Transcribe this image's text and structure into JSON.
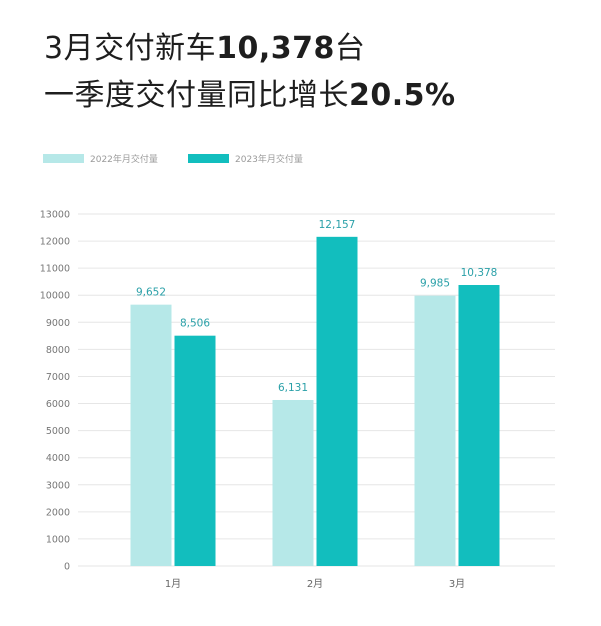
{
  "chart_data": {
    "type": "bar",
    "title_lines": [
      {
        "text": "3月交付新车",
        "bold": "10,378",
        "tail": "台"
      },
      {
        "text": "一季度交付量同比增长",
        "bold": "20.5%"
      }
    ],
    "categories": [
      "1月",
      "2月",
      "3月"
    ],
    "series": [
      {
        "name": "2022年月交付量",
        "values": [
          9652,
          6131,
          9985
        ],
        "data_labels": [
          "9,652",
          "6,131",
          "9,985"
        ],
        "color": "#b6e8e8"
      },
      {
        "name": "2023年月交付量",
        "values": [
          8506,
          12157,
          10378
        ],
        "data_labels": [
          "8,506",
          "12,157",
          "10,378"
        ],
        "color": "#12bebe"
      }
    ],
    "xlabel": "",
    "ylabel": "",
    "ylim": [
      0,
      13000
    ],
    "yticks": [
      0,
      1000,
      2000,
      3000,
      4000,
      5000,
      6000,
      7000,
      8000,
      9000,
      10000,
      11000,
      12000,
      13000
    ],
    "grid": true,
    "legend_position": "top-left",
    "data_label_color": "#2aa0a8",
    "grid_color": "#e6e6e6",
    "tick_label_color": "#777777"
  }
}
